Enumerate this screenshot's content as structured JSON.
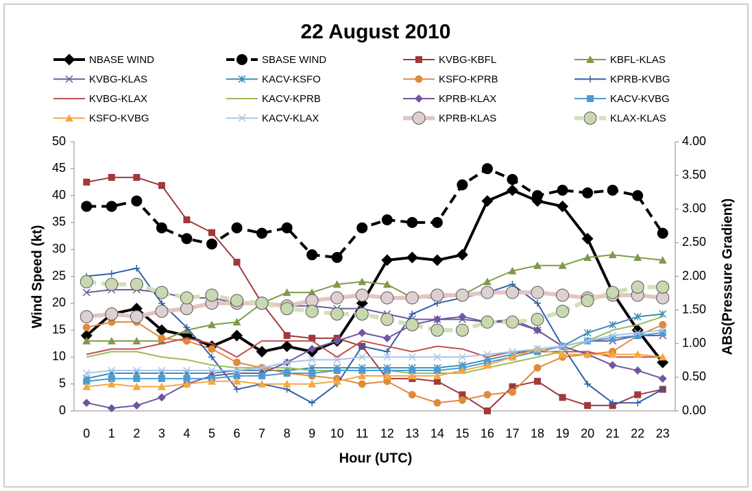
{
  "chart_data": {
    "type": "line",
    "title": "22 August 2010",
    "x_label": "Hour (UTC)",
    "y_label": "Wind Speed (kt)",
    "y2_label": "ABS(Pressure Gradient)",
    "categories": [
      "0",
      "1",
      "2",
      "3",
      "4",
      "5",
      "6",
      "7",
      "8",
      "9",
      "10",
      "11",
      "12",
      "13",
      "14",
      "15",
      "16",
      "17",
      "18",
      "19",
      "20",
      "21",
      "22",
      "23"
    ],
    "ylim": [
      0,
      50
    ],
    "yticks": [
      0,
      5,
      10,
      15,
      20,
      25,
      30,
      35,
      40,
      45,
      50
    ],
    "y2lim": [
      0,
      4
    ],
    "y2ticks": [
      {
        "value": 0,
        "label": "0.00"
      },
      {
        "value": 0.5,
        "label": "0.50"
      },
      {
        "value": 1,
        "label": "1.00"
      },
      {
        "value": 1.5,
        "label": "1.50"
      },
      {
        "value": 2,
        "label": "2.00"
      },
      {
        "value": 2.5,
        "label": "2.50"
      },
      {
        "value": 3,
        "label": "3.00"
      },
      {
        "value": 3.5,
        "label": "3.50"
      },
      {
        "value": 4,
        "label": "4.00"
      }
    ],
    "grid": false,
    "legend": "top",
    "series": [
      {
        "name": "NBASE WIND",
        "color": "#000000",
        "marker": "diamond",
        "width": 4,
        "dash": false,
        "axis": "y",
        "values": [
          14,
          18,
          19,
          15,
          14,
          12,
          14,
          11,
          12,
          11,
          13,
          20,
          28,
          28.5,
          28,
          29,
          39,
          41,
          39,
          38,
          32,
          22,
          15,
          9
        ]
      },
      {
        "name": "SBASE WIND",
        "color": "#000000",
        "marker": "circle",
        "width": 4,
        "dash": true,
        "axis": "y",
        "values": [
          38,
          38,
          39,
          34,
          32,
          31,
          34,
          33,
          34,
          29,
          28.5,
          34,
          35.5,
          35,
          35,
          42,
          45,
          43,
          40,
          41,
          40.5,
          41,
          40,
          33
        ]
      },
      {
        "name": "KVBG-KBFL",
        "color": "#a0393a",
        "marker": "square",
        "width": 2,
        "dash": false,
        "axis": "y2",
        "values": [
          3.4,
          3.47,
          3.47,
          3.35,
          2.84,
          2.65,
          2.21,
          1.6,
          1.12,
          1.08,
          1.08,
          0.96,
          0.48,
          0.48,
          0.44,
          0.24,
          0.0,
          0.36,
          0.44,
          0.2,
          0.08,
          0.08,
          0.24,
          0.32
        ]
      },
      {
        "name": "KBFL-KLAS",
        "color": "#7f9a48",
        "marker": "triangle",
        "width": 2,
        "dash": false,
        "axis": "y2",
        "values": [
          1.04,
          1.04,
          1.04,
          1.04,
          1.2,
          1.28,
          1.32,
          1.6,
          1.76,
          1.76,
          1.88,
          1.92,
          1.88,
          1.68,
          1.68,
          1.72,
          1.92,
          2.08,
          2.16,
          2.16,
          2.28,
          2.32,
          2.28,
          2.24
        ]
      },
      {
        "name": "KVBG-KLAS",
        "color": "#6a5a9c",
        "marker": "x",
        "width": 2,
        "dash": false,
        "axis": "y2",
        "values": [
          1.76,
          1.8,
          1.8,
          1.76,
          1.68,
          1.68,
          1.6,
          1.6,
          1.56,
          1.56,
          1.52,
          1.52,
          1.44,
          1.36,
          1.36,
          1.36,
          1.32,
          1.32,
          1.2,
          0.96,
          1.04,
          1.04,
          1.12,
          1.12
        ]
      },
      {
        "name": "KACV-KSFO",
        "color": "#3d8bb3",
        "marker": "star",
        "width": 2,
        "dash": false,
        "axis": "y2",
        "values": [
          0.48,
          0.56,
          0.56,
          0.56,
          0.56,
          0.56,
          0.6,
          0.6,
          0.6,
          0.64,
          0.64,
          0.64,
          0.64,
          0.64,
          0.64,
          0.68,
          0.76,
          0.84,
          0.92,
          0.96,
          1.16,
          1.28,
          1.4,
          1.44
        ]
      },
      {
        "name": "KSFO-KPRB",
        "color": "#e08a3c",
        "marker": "circle",
        "width": 2,
        "dash": false,
        "axis": "y2",
        "values": [
          1.24,
          1.32,
          1.32,
          1.08,
          1.04,
          0.92,
          0.72,
          0.64,
          0.56,
          0.52,
          0.48,
          0.4,
          0.44,
          0.24,
          0.12,
          0.16,
          0.24,
          0.28,
          0.64,
          0.8,
          0.84,
          0.88,
          1.12,
          1.28
        ]
      },
      {
        "name": "KPRB-KVBG",
        "color": "#2e5fa8",
        "marker": "plus",
        "width": 2,
        "dash": false,
        "axis": "y2",
        "values": [
          2.0,
          2.04,
          2.12,
          1.6,
          1.24,
          0.8,
          0.32,
          0.4,
          0.32,
          0.12,
          0.4,
          0.96,
          0.88,
          1.44,
          1.6,
          1.68,
          1.76,
          1.88,
          1.6,
          0.96,
          0.4,
          0.12,
          0.12,
          0.32
        ]
      },
      {
        "name": "KVBG-KLAX",
        "color": "#c0504d",
        "marker": "none",
        "width": 2,
        "dash": false,
        "axis": "y2",
        "values": [
          0.84,
          0.92,
          0.92,
          1.0,
          1.08,
          1.0,
          0.8,
          1.04,
          1.04,
          1.04,
          0.8,
          1.04,
          0.96,
          0.88,
          0.96,
          0.92,
          0.8,
          0.88,
          0.88,
          0.88,
          0.88,
          0.8,
          0.8,
          0.8
        ]
      },
      {
        "name": "KACV-KPRB",
        "color": "#9bbb59",
        "marker": "none",
        "width": 2,
        "dash": false,
        "axis": "y2",
        "values": [
          0.8,
          0.88,
          0.88,
          0.8,
          0.76,
          0.68,
          0.64,
          0.64,
          0.64,
          0.6,
          0.6,
          0.6,
          0.6,
          0.56,
          0.56,
          0.56,
          0.64,
          0.72,
          0.8,
          0.88,
          1.04,
          1.2,
          1.28,
          1.4
        ]
      },
      {
        "name": "KPRB-KLAX",
        "color": "#7056a0",
        "marker": "diamond",
        "width": 2,
        "dash": false,
        "axis": "y2",
        "values": [
          0.12,
          0.04,
          0.08,
          0.2,
          0.4,
          0.52,
          0.56,
          0.56,
          0.72,
          0.92,
          1.04,
          1.16,
          1.08,
          1.28,
          1.36,
          1.4,
          1.32,
          1.36,
          1.2,
          0.96,
          0.84,
          0.68,
          0.6,
          0.48
        ]
      },
      {
        "name": "KACV-KVBG",
        "color": "#4a9bd4",
        "marker": "square",
        "width": 2,
        "dash": false,
        "axis": "y2",
        "values": [
          0.44,
          0.48,
          0.48,
          0.48,
          0.48,
          0.48,
          0.52,
          0.52,
          0.56,
          0.56,
          0.6,
          0.6,
          0.6,
          0.6,
          0.6,
          0.64,
          0.72,
          0.8,
          0.88,
          0.96,
          1.04,
          1.08,
          1.12,
          1.16
        ]
      },
      {
        "name": "KSFO-KVBG",
        "color": "#f5a742",
        "marker": "triangle",
        "width": 2,
        "dash": false,
        "axis": "y2",
        "values": [
          0.36,
          0.4,
          0.36,
          0.36,
          0.4,
          0.44,
          0.44,
          0.4,
          0.4,
          0.4,
          0.44,
          0.52,
          0.52,
          0.52,
          0.52,
          0.6,
          0.68,
          0.8,
          0.92,
          0.84,
          0.84,
          0.84,
          0.84,
          0.8
        ]
      },
      {
        "name": "KACV-KLAX",
        "color": "#a8c4e8",
        "marker": "x",
        "width": 2,
        "dash": false,
        "axis": "y2",
        "values": [
          0.56,
          0.6,
          0.6,
          0.6,
          0.6,
          0.6,
          0.6,
          0.64,
          0.72,
          0.76,
          0.76,
          0.8,
          0.8,
          0.8,
          0.8,
          0.8,
          0.84,
          0.88,
          0.92,
          0.96,
          1.04,
          1.12,
          1.16,
          1.2
        ]
      },
      {
        "name": "KPRB-KLAS",
        "color": "#e6c4c4",
        "marker": "circle",
        "marker_color": "#ddd0d0",
        "width": 6,
        "dash": false,
        "axis": "y2",
        "values": [
          1.4,
          1.44,
          1.4,
          1.48,
          1.52,
          1.6,
          1.6,
          1.6,
          1.56,
          1.64,
          1.68,
          1.72,
          1.68,
          1.68,
          1.72,
          1.72,
          1.76,
          1.76,
          1.76,
          1.72,
          1.68,
          1.72,
          1.72,
          1.68
        ]
      },
      {
        "name": "KLAX-KLAS",
        "color": "#d3e0b8",
        "marker": "circle",
        "marker_color": "#c8d8b0",
        "width": 6,
        "dash": true,
        "axis": "y2",
        "values": [
          1.92,
          1.88,
          1.88,
          1.76,
          1.68,
          1.72,
          1.64,
          1.6,
          1.52,
          1.48,
          1.44,
          1.44,
          1.36,
          1.28,
          1.2,
          1.2,
          1.32,
          1.32,
          1.36,
          1.48,
          1.64,
          1.76,
          1.84,
          1.84
        ]
      }
    ]
  }
}
